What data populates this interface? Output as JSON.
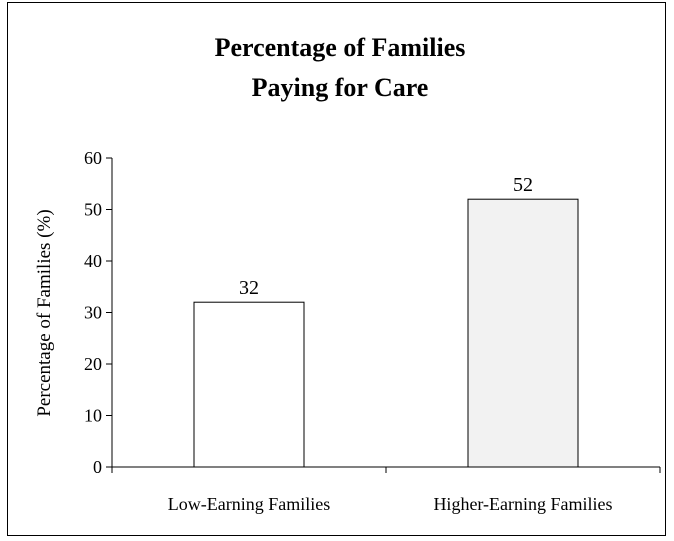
{
  "chart_data": {
    "type": "bar",
    "title": [
      "Percentage of Families",
      "Paying for Care"
    ],
    "xlabel": "",
    "ylabel": "Percentage of Families (%)",
    "categories": [
      "Low-Earning Families",
      "Higher-Earning Families"
    ],
    "values": [
      32,
      52
    ],
    "data_labels": [
      "32",
      "52"
    ],
    "ylim": [
      0,
      60
    ],
    "yticks": [
      0,
      10,
      20,
      30,
      40,
      50,
      60
    ],
    "bar_colors": [
      "#ffffff",
      "#f2f2f2"
    ],
    "grid": false,
    "legend": "none"
  }
}
